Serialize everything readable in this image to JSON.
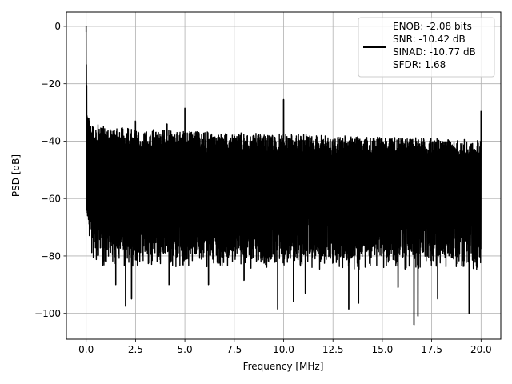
{
  "chart_data": {
    "type": "line",
    "xlabel": "Frequency [MHz]",
    "ylabel": "PSD [dB]",
    "xlim": [
      -1.0,
      21.0
    ],
    "ylim": [
      -109,
      5
    ],
    "x_ticks": [
      0.0,
      2.5,
      5.0,
      7.5,
      10.0,
      12.5,
      15.0,
      17.5,
      20.0
    ],
    "x_tick_labels": [
      "0.0",
      "2.5",
      "5.0",
      "7.5",
      "10.0",
      "12.5",
      "15.0",
      "17.5",
      "20.0"
    ],
    "y_ticks": [
      0,
      -20,
      -40,
      -60,
      -80,
      -100
    ],
    "y_tick_labels": [
      "0",
      "−20",
      "−40",
      "−60",
      "−80",
      "−100"
    ],
    "grid": true,
    "legend_position": "top-right",
    "legend": {
      "lines": [
        "ENOB: -2.08 bits",
        "SNR: -10.42 dB",
        "SINAD: -10.77 dB",
        "SFDR: 1.68"
      ]
    },
    "series": [
      {
        "color": "#000000",
        "description": "noisy power spectral density with spurs",
        "x_range": [
          0.0,
          20.0
        ],
        "upper_envelope": [
          [
            0.0,
            0.0
          ],
          [
            0.05,
            -27.0
          ],
          [
            0.2,
            -33.5
          ],
          [
            1.0,
            -35.0
          ],
          [
            5.0,
            -36.5
          ],
          [
            10.0,
            -37.5
          ],
          [
            15.0,
            -38.5
          ],
          [
            20.0,
            -39.5
          ]
        ],
        "lower_envelope": [
          [
            0.0,
            -62.0
          ],
          [
            0.3,
            -78.0
          ],
          [
            20.0,
            -79.0
          ]
        ],
        "spurs": [
          {
            "x": 0.0,
            "y": 0.0
          },
          {
            "x": 2.5,
            "y": -33.0
          },
          {
            "x": 4.1,
            "y": -34.0
          },
          {
            "x": 5.0,
            "y": -28.5
          },
          {
            "x": 10.0,
            "y": -25.5
          },
          {
            "x": 20.0,
            "y": -29.5
          }
        ],
        "dips": [
          {
            "x": 1.5,
            "y": -90.0
          },
          {
            "x": 2.0,
            "y": -97.5
          },
          {
            "x": 2.3,
            "y": -95.0
          },
          {
            "x": 4.2,
            "y": -90.0
          },
          {
            "x": 6.2,
            "y": -90.0
          },
          {
            "x": 8.0,
            "y": -88.5
          },
          {
            "x": 9.7,
            "y": -98.5
          },
          {
            "x": 10.5,
            "y": -96.0
          },
          {
            "x": 11.1,
            "y": -93.0
          },
          {
            "x": 13.3,
            "y": -98.5
          },
          {
            "x": 13.8,
            "y": -96.5
          },
          {
            "x": 15.8,
            "y": -91.0
          },
          {
            "x": 16.6,
            "y": -104.0
          },
          {
            "x": 16.8,
            "y": -101.0
          },
          {
            "x": 17.8,
            "y": -95.0
          },
          {
            "x": 19.4,
            "y": -100.0
          }
        ],
        "min_y": -104.0,
        "max_y": 0.0
      }
    ]
  }
}
